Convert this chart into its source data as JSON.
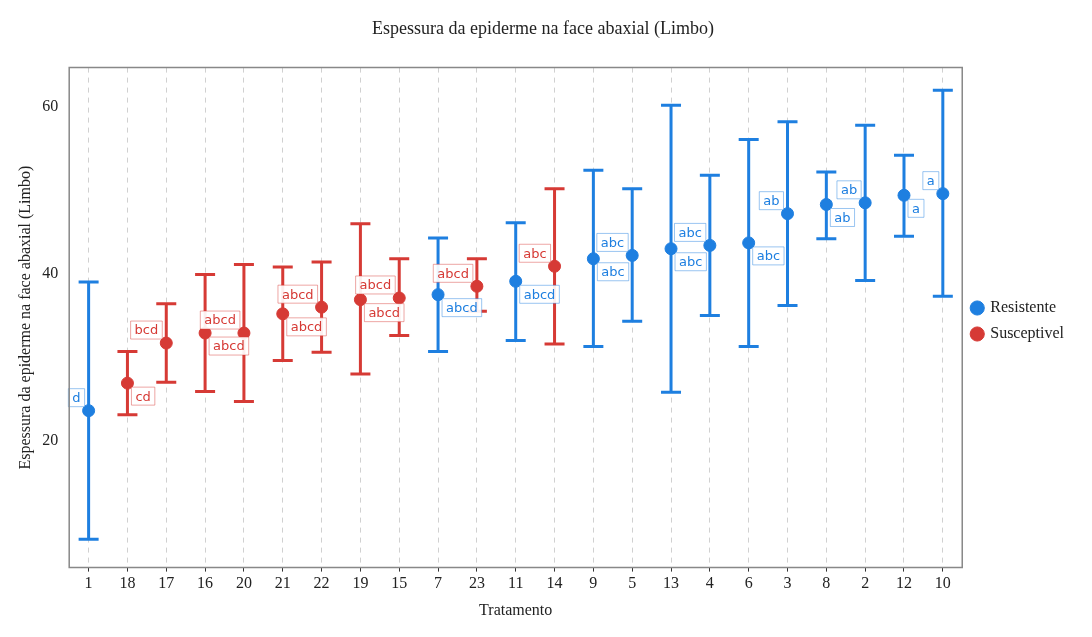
{
  "chart_data": {
    "type": "scatter",
    "title": "Espessura da epiderme na face abaxial (Limbo)",
    "xlabel": "Tratamento",
    "ylabel": "Espessura da epiderme na face abaxial (Limbo)",
    "categories": [
      "1",
      "18",
      "17",
      "16",
      "20",
      "21",
      "22",
      "19",
      "15",
      "7",
      "23",
      "11",
      "14",
      "9",
      "5",
      "13",
      "4",
      "6",
      "3",
      "8",
      "2",
      "12",
      "10"
    ],
    "ylim": [
      4.8,
      64.7
    ],
    "yticks": [
      20,
      40,
      60
    ],
    "grid": "x",
    "legend": "right",
    "marker": "circle",
    "series": [
      {
        "name": "Resistente",
        "color": "#1e7fe0",
        "values": [
          23.6,
          null,
          null,
          null,
          null,
          null,
          null,
          null,
          null,
          37.5,
          null,
          39.1,
          null,
          41.8,
          42.2,
          43.0,
          43.4,
          43.7,
          47.2,
          48.3,
          48.5,
          49.4,
          49.6
        ],
        "errors": [
          [
            8.2,
            39.0
          ],
          null,
          null,
          null,
          null,
          null,
          null,
          null,
          null,
          [
            30.7,
            44.3
          ],
          null,
          [
            32.0,
            46.1
          ],
          null,
          [
            31.3,
            52.4
          ],
          [
            34.3,
            50.2
          ],
          [
            25.8,
            60.2
          ],
          [
            35.0,
            51.8
          ],
          [
            31.3,
            56.1
          ],
          [
            36.2,
            58.2
          ],
          [
            44.2,
            52.2
          ],
          [
            39.2,
            57.8
          ],
          [
            44.5,
            54.2
          ],
          [
            37.3,
            62.0
          ]
        ],
        "value_labels": [
          "d",
          null,
          null,
          null,
          null,
          null,
          null,
          null,
          null,
          "abcd",
          null,
          "abcd",
          null,
          "abc",
          "abc",
          "abc",
          "abc",
          "abc",
          "ab",
          "ab",
          "ab",
          "a",
          "a"
        ]
      },
      {
        "name": "Susceptivel",
        "color": "#d63a35",
        "values": [
          null,
          26.9,
          31.7,
          32.9,
          32.9,
          35.2,
          36.0,
          36.9,
          37.1,
          null,
          38.5,
          null,
          40.9,
          null,
          null,
          null,
          null,
          null,
          null,
          null,
          null,
          null,
          null
        ],
        "errors": [
          null,
          [
            23.1,
            30.7
          ],
          [
            27.0,
            36.4
          ],
          [
            25.9,
            39.9
          ],
          [
            24.7,
            41.1
          ],
          [
            29.6,
            40.8
          ],
          [
            30.6,
            41.4
          ],
          [
            28.0,
            46.0
          ],
          [
            32.6,
            41.8
          ],
          null,
          [
            35.5,
            41.8
          ],
          null,
          [
            31.6,
            50.2
          ],
          null,
          null,
          null,
          null,
          null,
          null,
          null,
          null,
          null,
          null
        ],
        "value_labels": [
          null,
          "cd",
          "bcd",
          "abcd",
          "abcd",
          "abcd",
          "abcd",
          "abcd",
          "abcd",
          null,
          "abcd",
          null,
          "abc",
          null,
          null,
          null,
          null,
          null,
          null,
          null,
          null,
          null,
          null
        ]
      }
    ]
  }
}
